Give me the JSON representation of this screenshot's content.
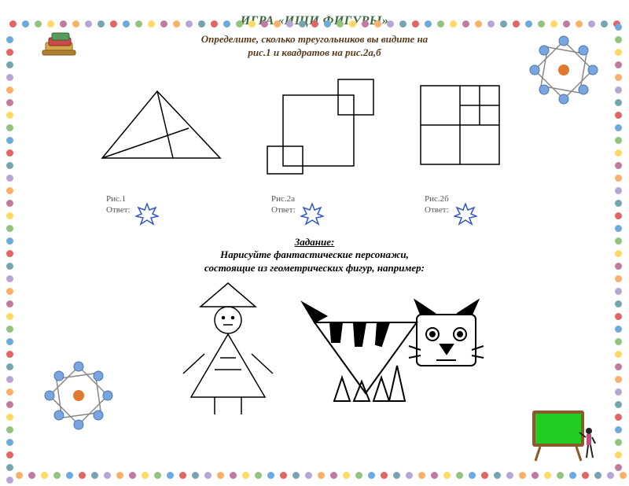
{
  "colors": {
    "title": "#3c6b3c",
    "subtitle": "#5a3a1a",
    "burst_stroke": "#3355cc",
    "burst_fill": "#ffffff",
    "board_frame": "#8a5a2a",
    "board_green": "#22cc22",
    "mol_sphere": "#7aa6e0",
    "mol_center": "#e07a30",
    "dots": [
      "#e06666",
      "#6fa8dc",
      "#93c47d",
      "#ffd966",
      "#c27ba0",
      "#f6b26b",
      "#b4a7d6",
      "#76a5af"
    ]
  },
  "title": "ИГРА «ИЩИ ФИГУРЫ»",
  "subtitle_l1": "Определите, сколько треугольников вы видите на",
  "subtitle_l2": "рис.1 и квадратов на рис.2а,б",
  "labels": {
    "r1": "Рис.1",
    "r2a": "Рис.2а",
    "r2b": "Рис.2б",
    "ans": "Ответ:"
  },
  "task_title": "Задание:",
  "task_l1": "Нарисуйте фантастические персонажи,",
  "task_l2": "состоящие из геометрических фигур, например:"
}
